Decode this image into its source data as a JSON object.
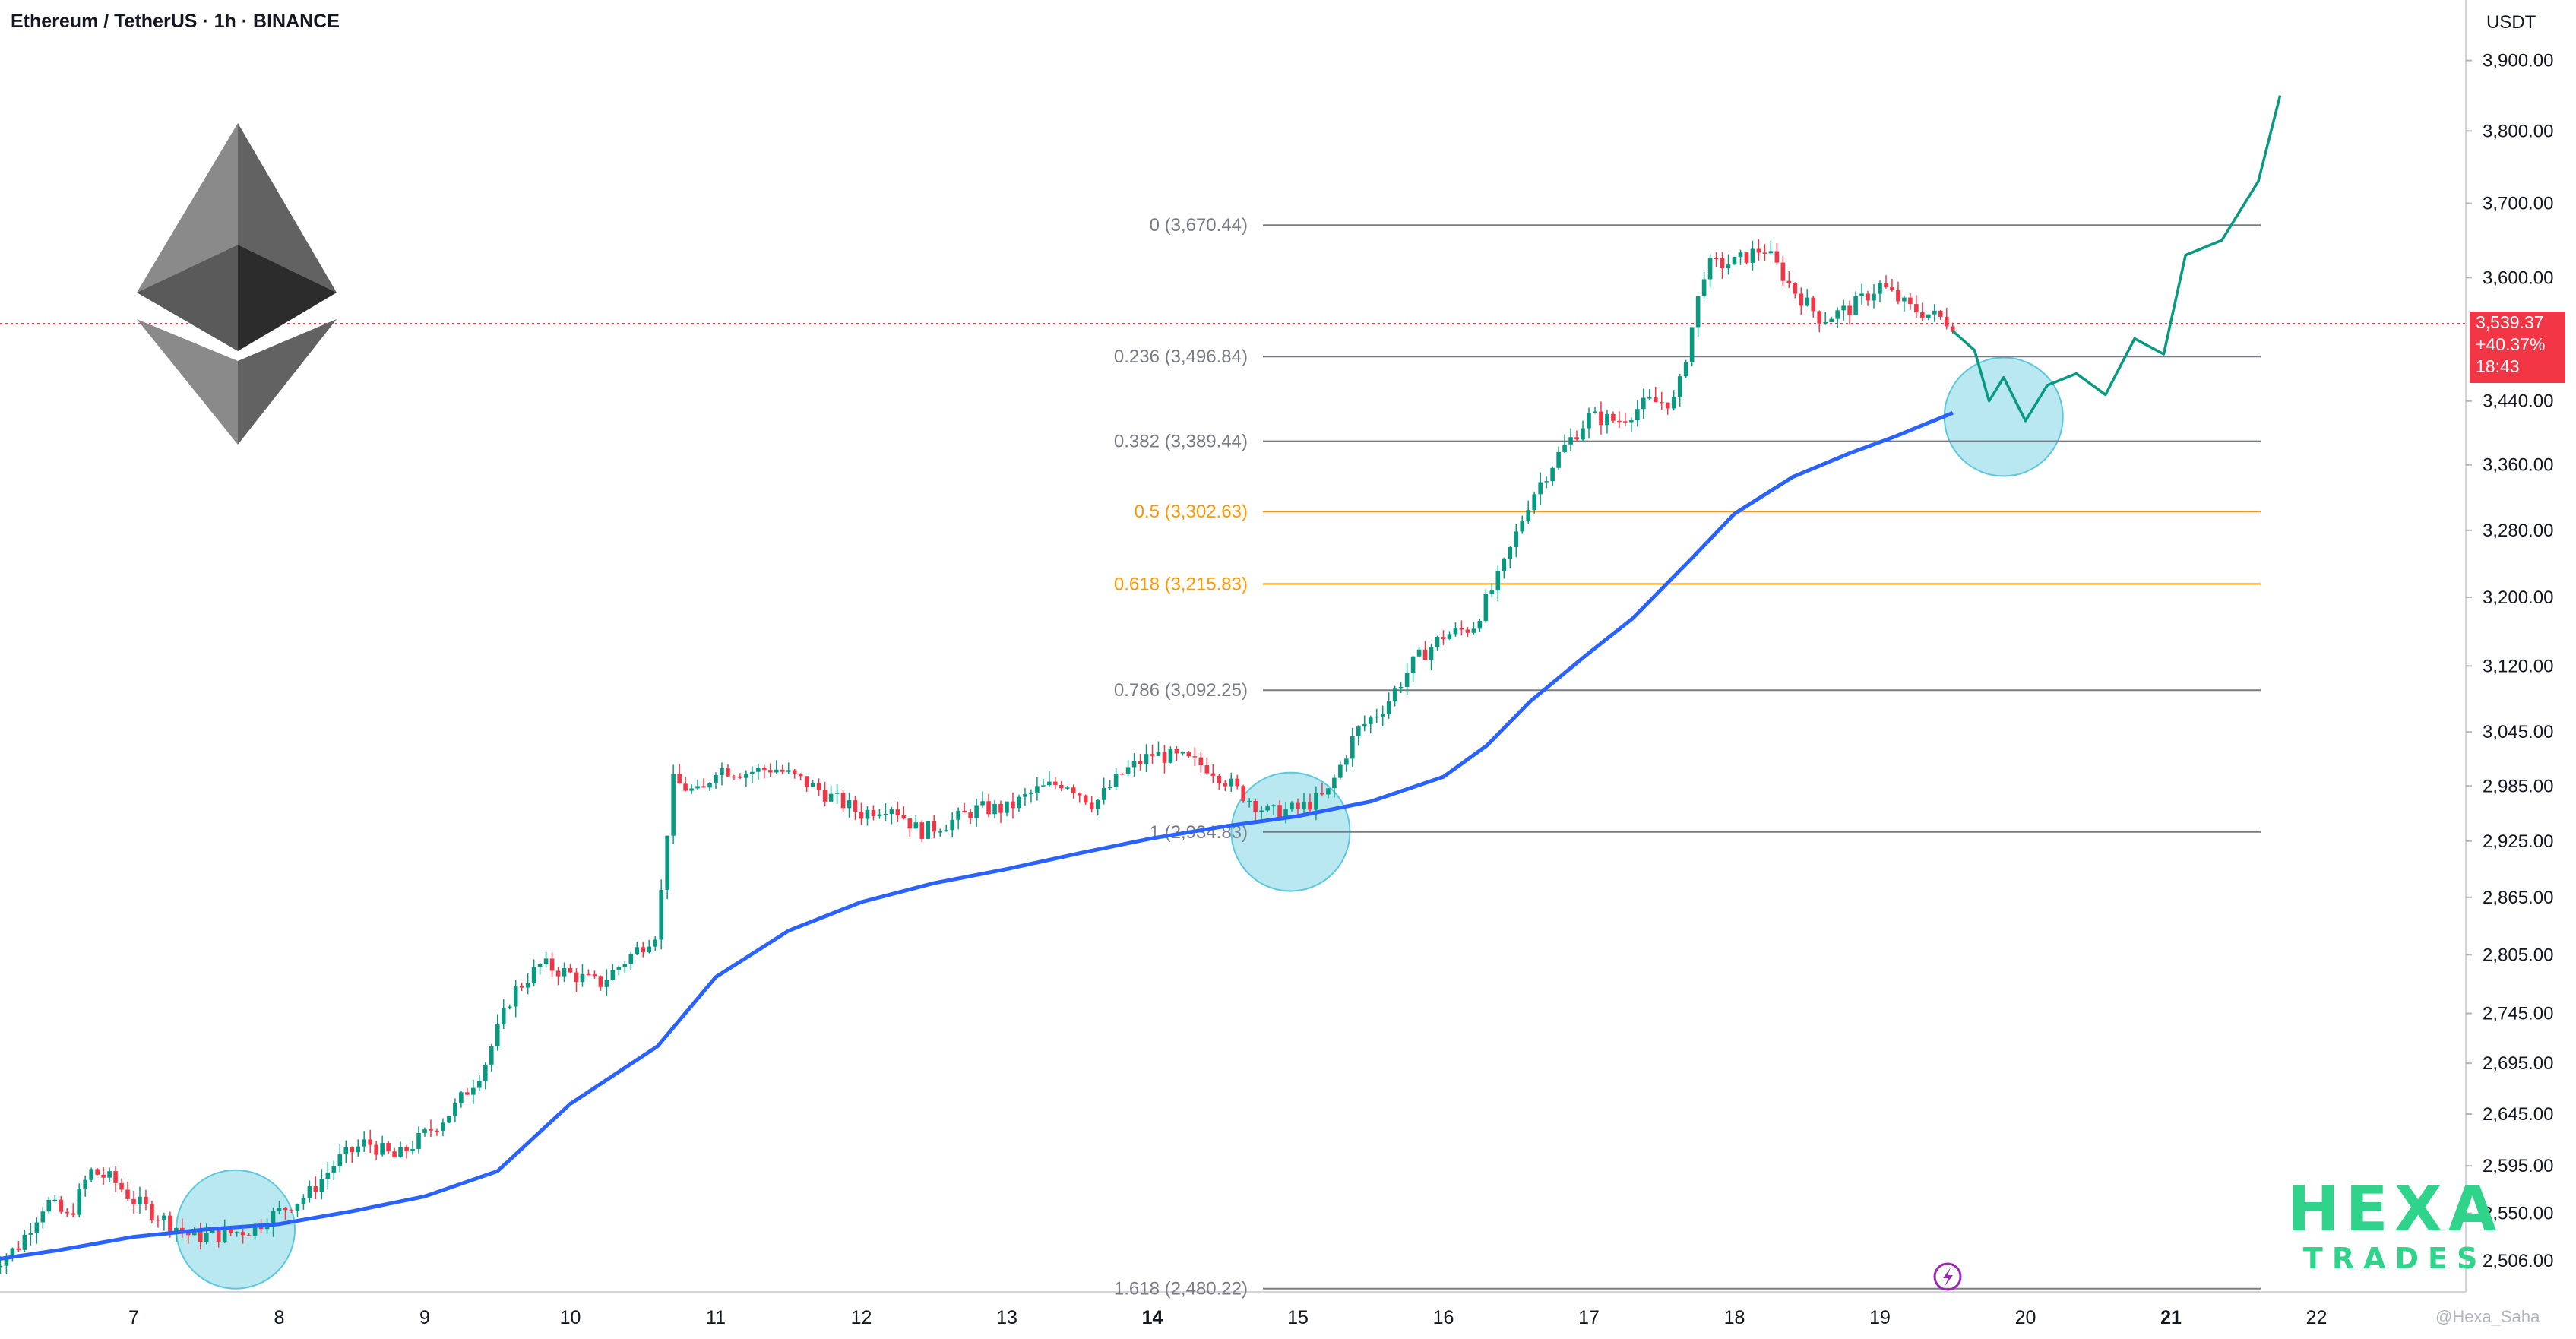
{
  "title": "Ethereum / TetherUS · 1h · BINANCE",
  "unit": "USDT",
  "current_price": {
    "price": "3,539.37",
    "change": "+40.37%",
    "countdown": "18:43"
  },
  "watermark": {
    "line1": "HEXA",
    "line2": "TRADES"
  },
  "credit": "@Hexa_Saha",
  "colors": {
    "up": "#089981",
    "down": "#f23645",
    "ema": "#2962ff",
    "fib_gray": "#787b86",
    "fib_orange": "#ff9800",
    "projection": "#089981",
    "circle": "#7fd6e6"
  },
  "chart_data": {
    "type": "candlestick",
    "symbol": "ETHUSDT",
    "interval": "1h",
    "y_axis_scale": "log",
    "y_ticks": [
      {
        "value": 3900,
        "label": "3,900.00"
      },
      {
        "value": 3800,
        "label": "3,800.00"
      },
      {
        "value": 3700,
        "label": "3,700.00"
      },
      {
        "value": 3600,
        "label": "3,600.00"
      },
      {
        "value": 3440,
        "label": "3,440.00"
      },
      {
        "value": 3360,
        "label": "3,360.00"
      },
      {
        "value": 3280,
        "label": "3,280.00"
      },
      {
        "value": 3200,
        "label": "3,200.00"
      },
      {
        "value": 3120,
        "label": "3,120.00"
      },
      {
        "value": 3045,
        "label": "3,045.00"
      },
      {
        "value": 2985,
        "label": "2,985.00"
      },
      {
        "value": 2925,
        "label": "2,925.00"
      },
      {
        "value": 2865,
        "label": "2,865.00"
      },
      {
        "value": 2805,
        "label": "2,805.00"
      },
      {
        "value": 2745,
        "label": "2,745.00"
      },
      {
        "value": 2695,
        "label": "2,695.00"
      },
      {
        "value": 2645,
        "label": "2,645.00"
      },
      {
        "value": 2595,
        "label": "2,595.00"
      },
      {
        "value": 2550,
        "label": "2,550.00"
      },
      {
        "value": 2506,
        "label": "2,506.00"
      }
    ],
    "x_ticks": [
      {
        "day": 7,
        "label": "7"
      },
      {
        "day": 8,
        "label": "8"
      },
      {
        "day": 9,
        "label": "9"
      },
      {
        "day": 10,
        "label": "10"
      },
      {
        "day": 11,
        "label": "11"
      },
      {
        "day": 12,
        "label": "12"
      },
      {
        "day": 13,
        "label": "13"
      },
      {
        "day": 14,
        "label": "14",
        "bold": true
      },
      {
        "day": 15,
        "label": "15"
      },
      {
        "day": 16,
        "label": "16"
      },
      {
        "day": 17,
        "label": "17"
      },
      {
        "day": 18,
        "label": "18"
      },
      {
        "day": 19,
        "label": "19"
      },
      {
        "day": 20,
        "label": "20"
      },
      {
        "day": 21,
        "label": "21",
        "bold": true
      },
      {
        "day": 22,
        "label": "22"
      }
    ],
    "fib_levels": [
      {
        "label": "0 (3,670.44)",
        "value": 3670.44,
        "color": "gray"
      },
      {
        "label": "0.236 (3,496.84)",
        "value": 3496.84,
        "color": "gray"
      },
      {
        "label": "0.382 (3,389.44)",
        "value": 3389.44,
        "color": "gray"
      },
      {
        "label": "0.5 (3,302.63)",
        "value": 3302.63,
        "color": "orange"
      },
      {
        "label": "0.618 (3,215.83)",
        "value": 3215.83,
        "color": "orange"
      },
      {
        "label": "0.786 (3,092.25)",
        "value": 3092.25,
        "color": "gray"
      },
      {
        "label": "1 (2,934.83)",
        "value": 2934.83,
        "color": "gray"
      },
      {
        "label": "1.618 (2,480.22)",
        "value": 2480.22,
        "color": "gray"
      }
    ],
    "price_path": [
      [
        6.0,
        2500
      ],
      [
        6.2,
        2518
      ],
      [
        6.4,
        2562
      ],
      [
        6.55,
        2545
      ],
      [
        6.7,
        2590
      ],
      [
        6.85,
        2582
      ],
      [
        7.0,
        2562
      ],
      [
        7.2,
        2545
      ],
      [
        7.4,
        2528
      ],
      [
        7.6,
        2530
      ],
      [
        7.8,
        2535
      ],
      [
        8.0,
        2552
      ],
      [
        8.2,
        2568
      ],
      [
        8.4,
        2600
      ],
      [
        8.6,
        2618
      ],
      [
        8.8,
        2602
      ],
      [
        9.0,
        2625
      ],
      [
        9.2,
        2650
      ],
      [
        9.4,
        2690
      ],
      [
        9.6,
        2765
      ],
      [
        9.8,
        2795
      ],
      [
        10.0,
        2785
      ],
      [
        10.2,
        2775
      ],
      [
        10.4,
        2802
      ],
      [
        10.6,
        2830
      ],
      [
        10.7,
        2990
      ],
      [
        10.9,
        2975
      ],
      [
        11.0,
        3005
      ],
      [
        11.2,
        3000
      ],
      [
        11.4,
        3005
      ],
      [
        11.6,
        2990
      ],
      [
        11.8,
        2972
      ],
      [
        12.0,
        2955
      ],
      [
        12.2,
        2965
      ],
      [
        12.4,
        2935
      ],
      [
        12.6,
        2945
      ],
      [
        12.8,
        2960
      ],
      [
        13.0,
        2960
      ],
      [
        13.2,
        2980
      ],
      [
        13.4,
        2990
      ],
      [
        13.6,
        2965
      ],
      [
        13.8,
        3000
      ],
      [
        14.0,
        3020
      ],
      [
        14.2,
        3015
      ],
      [
        14.4,
        3005
      ],
      [
        14.6,
        2978
      ],
      [
        14.8,
        2955
      ],
      [
        15.0,
        2960
      ],
      [
        15.2,
        2975
      ],
      [
        15.4,
        3045
      ],
      [
        15.6,
        3075
      ],
      [
        15.8,
        3125
      ],
      [
        16.0,
        3155
      ],
      [
        16.2,
        3165
      ],
      [
        16.4,
        3230
      ],
      [
        16.6,
        3320
      ],
      [
        16.8,
        3375
      ],
      [
        17.0,
        3420
      ],
      [
        17.2,
        3415
      ],
      [
        17.4,
        3438
      ],
      [
        17.6,
        3440
      ],
      [
        17.8,
        3615
      ],
      [
        18.0,
        3620
      ],
      [
        18.2,
        3640
      ],
      [
        18.4,
        3585
      ],
      [
        18.6,
        3545
      ],
      [
        18.8,
        3560
      ],
      [
        19.0,
        3590
      ],
      [
        19.2,
        3560
      ],
      [
        19.4,
        3548
      ],
      [
        19.5,
        3539
      ]
    ],
    "ema_path": [
      [
        6.0,
        2506
      ],
      [
        6.5,
        2516
      ],
      [
        7.0,
        2528
      ],
      [
        7.5,
        2535
      ],
      [
        8.0,
        2540
      ],
      [
        8.5,
        2552
      ],
      [
        9.0,
        2566
      ],
      [
        9.5,
        2590
      ],
      [
        10.0,
        2655
      ],
      [
        10.6,
        2712
      ],
      [
        11.0,
        2782
      ],
      [
        11.5,
        2830
      ],
      [
        12.0,
        2860
      ],
      [
        12.5,
        2880
      ],
      [
        13.0,
        2895
      ],
      [
        13.5,
        2912
      ],
      [
        14.0,
        2928
      ],
      [
        14.5,
        2941
      ],
      [
        15.0,
        2952
      ],
      [
        15.5,
        2968
      ],
      [
        16.0,
        2995
      ],
      [
        16.3,
        3030
      ],
      [
        16.6,
        3080
      ],
      [
        17.0,
        3135
      ],
      [
        17.3,
        3175
      ],
      [
        17.7,
        3245
      ],
      [
        18.0,
        3300
      ],
      [
        18.4,
        3345
      ],
      [
        18.8,
        3375
      ],
      [
        19.1,
        3395
      ],
      [
        19.5,
        3425
      ]
    ],
    "projection_path": [
      [
        19.5,
        3530
      ],
      [
        19.65,
        3505
      ],
      [
        19.75,
        3440
      ],
      [
        19.85,
        3470
      ],
      [
        20.0,
        3415
      ],
      [
        20.15,
        3460
      ],
      [
        20.35,
        3475
      ],
      [
        20.55,
        3448
      ],
      [
        20.75,
        3520
      ],
      [
        20.95,
        3500
      ],
      [
        21.1,
        3630
      ],
      [
        21.35,
        3650
      ],
      [
        21.6,
        3730
      ],
      [
        21.75,
        3850
      ]
    ],
    "highlight_circles": [
      {
        "day": 7.7,
        "price": 2535
      },
      {
        "day": 14.95,
        "price": 2935
      },
      {
        "day": 19.85,
        "price": 3420
      }
    ]
  }
}
